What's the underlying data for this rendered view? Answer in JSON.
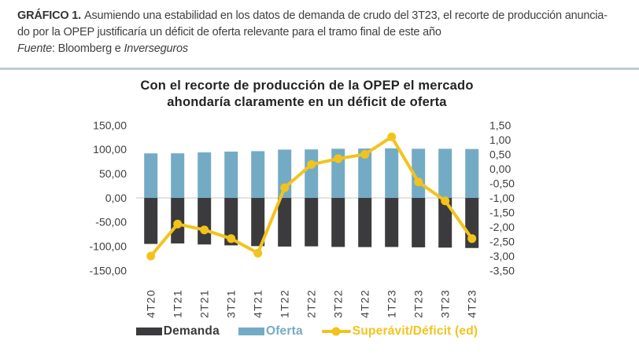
{
  "header": {
    "label": "GRÁFICO 1.",
    "caption_line1": "Asumiendo una estabilidad en los datos de demanda de crudo del 3T23, el recorte de producción anuncia-",
    "caption_line2": "do por la OPEP justificaría un déficit de oferta relevante para el tramo final de este año",
    "source_label": "Fuente",
    "source_mid": ": Bloomberg e ",
    "source_italic": "Inverseguros"
  },
  "chart_data": {
    "type": "bar+line combo",
    "title_line1": "Con el recorte de producción de la OPEP el mercado",
    "title_line2": "ahondaría claramente en un déficit de oferta",
    "categories": [
      "4T20",
      "1T21",
      "2T21",
      "3T21",
      "4T21",
      "1T22",
      "2T22",
      "3T22",
      "4T22",
      "1T23",
      "2T23",
      "3T23",
      "4T23"
    ],
    "series": [
      {
        "name": "Demanda",
        "type": "bar",
        "axis": "left",
        "color": "#3B3B3D",
        "values": [
          -95.0,
          -94.0,
          -96.1,
          -98.0,
          -99.5,
          -100.4,
          -100.0,
          -101.2,
          -101.5,
          -101.3,
          -102.0,
          -102.6,
          -103.4
        ]
      },
      {
        "name": "Oferta",
        "type": "bar",
        "axis": "left",
        "color": "#74ABC4",
        "values": [
          92.0,
          92.1,
          94.0,
          95.6,
          96.6,
          99.75,
          100.15,
          101.55,
          102.0,
          102.4,
          101.55,
          101.5,
          101.0
        ]
      },
      {
        "name": "Superávit/Déficit (ed)",
        "type": "line",
        "axis": "right",
        "color": "#F3C31C",
        "values": [
          -3.0,
          -1.9,
          -2.1,
          -2.4,
          -2.9,
          -0.65,
          0.15,
          0.35,
          0.5,
          1.1,
          -0.45,
          -1.1,
          -2.4
        ]
      }
    ],
    "left_axis": {
      "min": -150,
      "max": 150,
      "step": 50,
      "tick_labels": [
        "150,00",
        "100,00",
        "50,00",
        "0,00",
        "-50,00",
        "-100,00",
        "-150,00"
      ]
    },
    "right_axis": {
      "min": -3.5,
      "max": 1.5,
      "step": 0.5,
      "tick_labels": [
        "1,50",
        "1,00",
        "0,50",
        "0,00",
        "-0,50",
        "-1,00",
        "-1,50",
        "-2,00",
        "-2,50",
        "-3,00",
        "-3,50"
      ]
    },
    "gridlines": "single horizontal line at left-axis zero",
    "gridline_color": "#D9D9D9",
    "legend_position": "bottom"
  }
}
